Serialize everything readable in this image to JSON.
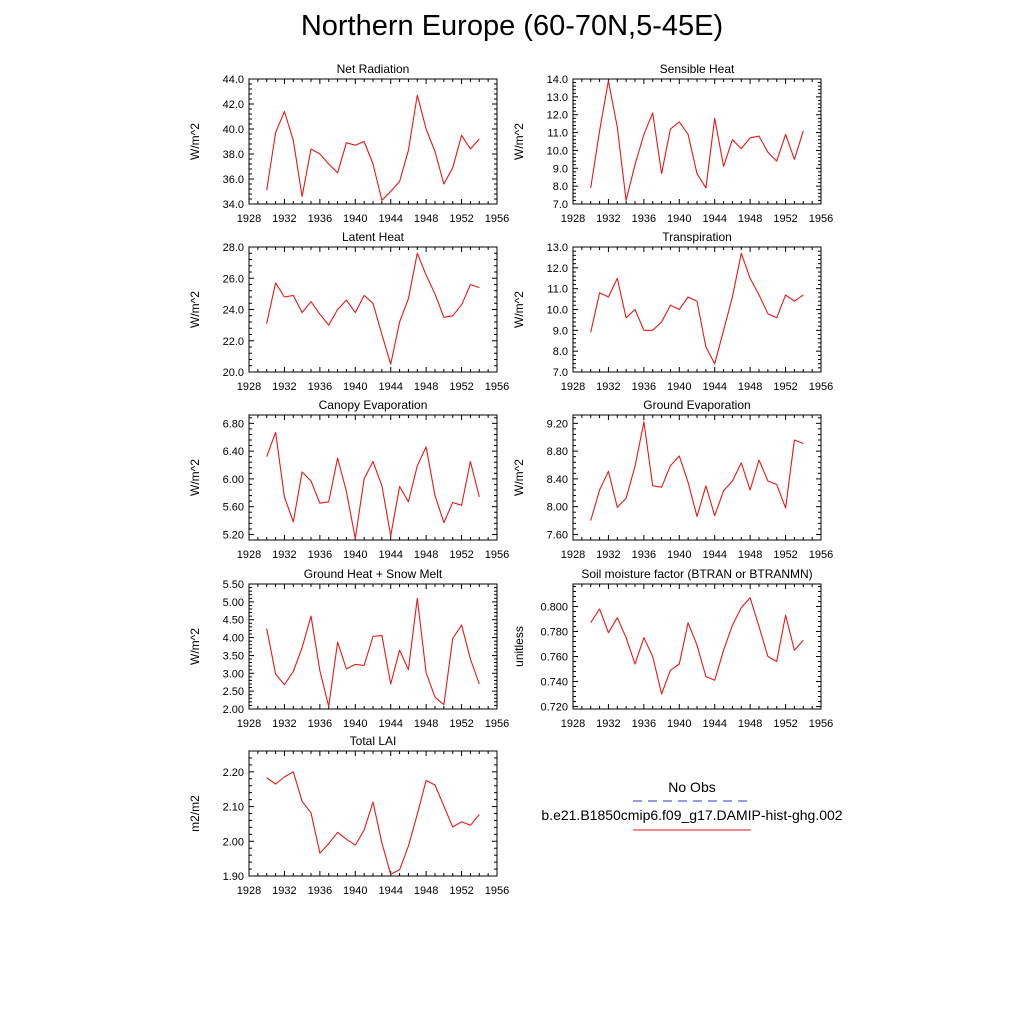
{
  "title": "Northern Europe (60-70N,5-45E)",
  "legend": {
    "obs_label": "No Obs",
    "model_label": "b.e21.B1850cmip6.f09_g17.DAMIP-hist-ghg.002",
    "obs_color": "#3333cc",
    "model_color": "#e61919"
  },
  "chart_data": [
    {
      "type": "line",
      "title": "Net Radiation",
      "ylabel": "W/m^2",
      "xlim": [
        1928,
        1956
      ],
      "ylim": [
        34.0,
        44.0
      ],
      "xticks": [
        1928,
        1932,
        1936,
        1940,
        1944,
        1948,
        1952,
        1956
      ],
      "yticks": [
        34.0,
        36.0,
        38.0,
        40.0,
        42.0,
        44.0
      ],
      "ytick_decimals": 1,
      "x": [
        1930,
        1931,
        1932,
        1933,
        1934,
        1935,
        1936,
        1937,
        1938,
        1939,
        1940,
        1941,
        1942,
        1943,
        1944,
        1945,
        1946,
        1947,
        1948,
        1949,
        1950,
        1951,
        1952,
        1953,
        1954
      ],
      "series": [
        {
          "values": [
            35.1,
            39.7,
            41.4,
            39.1,
            34.6,
            38.4,
            38.0,
            37.2,
            36.5,
            38.9,
            38.7,
            39.0,
            37.2,
            34.3,
            35.0,
            35.8,
            38.3,
            42.7,
            40.0,
            38.2,
            35.6,
            36.9,
            39.5,
            38.4,
            39.2
          ],
          "color": "#e61919"
        }
      ]
    },
    {
      "type": "line",
      "title": "Sensible Heat",
      "ylabel": "W/m^2",
      "xlim": [
        1928,
        1956
      ],
      "ylim": [
        7.0,
        14.0
      ],
      "xticks": [
        1928,
        1932,
        1936,
        1940,
        1944,
        1948,
        1952,
        1956
      ],
      "yticks": [
        7.0,
        8.0,
        9.0,
        10.0,
        11.0,
        12.0,
        13.0,
        14.0
      ],
      "ytick_decimals": 1,
      "x": [
        1930,
        1931,
        1932,
        1933,
        1934,
        1935,
        1936,
        1937,
        1938,
        1939,
        1940,
        1941,
        1942,
        1943,
        1944,
        1945,
        1946,
        1947,
        1948,
        1949,
        1950,
        1951,
        1952,
        1953,
        1954
      ],
      "series": [
        {
          "values": [
            7.9,
            11.1,
            13.9,
            11.3,
            7.2,
            9.2,
            10.9,
            12.1,
            8.7,
            11.2,
            11.6,
            10.9,
            8.7,
            7.9,
            11.8,
            9.1,
            10.6,
            10.1,
            10.7,
            10.8,
            9.9,
            9.4,
            10.9,
            9.5,
            11.1
          ],
          "color": "#e61919"
        }
      ]
    },
    {
      "type": "line",
      "title": "Latent Heat",
      "ylabel": "W/m^2",
      "xlim": [
        1928,
        1956
      ],
      "ylim": [
        20.0,
        28.0
      ],
      "xticks": [
        1928,
        1932,
        1936,
        1940,
        1944,
        1948,
        1952,
        1956
      ],
      "yticks": [
        20.0,
        22.0,
        24.0,
        26.0,
        28.0
      ],
      "ytick_decimals": 1,
      "x": [
        1930,
        1931,
        1932,
        1933,
        1934,
        1935,
        1936,
        1937,
        1938,
        1939,
        1940,
        1941,
        1942,
        1943,
        1944,
        1945,
        1946,
        1947,
        1948,
        1949,
        1950,
        1951,
        1952,
        1953,
        1954
      ],
      "series": [
        {
          "values": [
            23.1,
            25.7,
            24.8,
            24.9,
            23.8,
            24.5,
            23.7,
            23.0,
            24.0,
            24.6,
            23.8,
            24.9,
            24.4,
            22.4,
            20.5,
            23.2,
            24.7,
            27.6,
            26.2,
            25.0,
            23.5,
            23.6,
            24.3,
            25.6,
            25.4
          ],
          "color": "#e61919"
        }
      ]
    },
    {
      "type": "line",
      "title": "Transpiration",
      "ylabel": "W/m^2",
      "xlim": [
        1928,
        1956
      ],
      "ylim": [
        7.0,
        13.0
      ],
      "xticks": [
        1928,
        1932,
        1936,
        1940,
        1944,
        1948,
        1952,
        1956
      ],
      "yticks": [
        7.0,
        8.0,
        9.0,
        10.0,
        11.0,
        12.0,
        13.0
      ],
      "ytick_decimals": 1,
      "x": [
        1930,
        1931,
        1932,
        1933,
        1934,
        1935,
        1936,
        1937,
        1938,
        1939,
        1940,
        1941,
        1942,
        1943,
        1944,
        1945,
        1946,
        1947,
        1948,
        1949,
        1950,
        1951,
        1952,
        1953,
        1954
      ],
      "series": [
        {
          "values": [
            8.9,
            10.8,
            10.6,
            11.5,
            9.6,
            10.0,
            9.0,
            9.0,
            9.4,
            10.2,
            10.0,
            10.6,
            10.4,
            8.2,
            7.4,
            9.0,
            10.6,
            12.7,
            11.5,
            10.7,
            9.8,
            9.6,
            10.7,
            10.4,
            10.7
          ],
          "color": "#e61919"
        }
      ]
    },
    {
      "type": "line",
      "title": "Canopy Evaporation",
      "ylabel": "W/m^2",
      "xlim": [
        1928,
        1956
      ],
      "ylim": [
        5.12,
        6.92
      ],
      "xticks": [
        1928,
        1932,
        1936,
        1940,
        1944,
        1948,
        1952,
        1956
      ],
      "yticks": [
        5.2,
        5.6,
        6.0,
        6.4,
        6.8
      ],
      "ytick_decimals": 2,
      "x": [
        1930,
        1931,
        1932,
        1933,
        1934,
        1935,
        1936,
        1937,
        1938,
        1939,
        1940,
        1941,
        1942,
        1943,
        1944,
        1945,
        1946,
        1947,
        1948,
        1949,
        1950,
        1951,
        1952,
        1953,
        1954
      ],
      "series": [
        {
          "values": [
            6.32,
            6.67,
            5.74,
            5.38,
            6.1,
            5.97,
            5.65,
            5.67,
            6.3,
            5.82,
            5.14,
            6.0,
            6.25,
            5.9,
            5.18,
            5.89,
            5.67,
            6.19,
            6.46,
            5.76,
            5.37,
            5.66,
            5.62,
            6.25,
            5.74
          ],
          "color": "#e61919"
        }
      ]
    },
    {
      "type": "line",
      "title": "Ground Evaporation",
      "ylabel": "W/m^2",
      "xlim": [
        1928,
        1956
      ],
      "ylim": [
        7.52,
        9.32
      ],
      "xticks": [
        1928,
        1932,
        1936,
        1940,
        1944,
        1948,
        1952,
        1956
      ],
      "yticks": [
        7.6,
        8.0,
        8.4,
        8.8,
        9.2
      ],
      "ytick_decimals": 2,
      "x": [
        1930,
        1931,
        1932,
        1933,
        1934,
        1935,
        1936,
        1937,
        1938,
        1939,
        1940,
        1941,
        1942,
        1943,
        1944,
        1945,
        1946,
        1947,
        1948,
        1949,
        1950,
        1951,
        1952,
        1953,
        1954
      ],
      "series": [
        {
          "values": [
            7.8,
            8.24,
            8.51,
            7.99,
            8.12,
            8.58,
            9.22,
            8.3,
            8.28,
            8.59,
            8.73,
            8.35,
            7.86,
            8.3,
            7.87,
            8.23,
            8.37,
            8.63,
            8.24,
            8.67,
            8.37,
            8.32,
            7.98,
            8.96,
            8.91
          ],
          "color": "#e61919"
        }
      ]
    },
    {
      "type": "line",
      "title": "Ground Heat + Snow Melt",
      "ylabel": "W/m^2",
      "xlim": [
        1928,
        1956
      ],
      "ylim": [
        2.0,
        5.5
      ],
      "xticks": [
        1928,
        1932,
        1936,
        1940,
        1944,
        1948,
        1952,
        1956
      ],
      "yticks": [
        2.0,
        2.5,
        3.0,
        3.5,
        4.0,
        4.5,
        5.0,
        5.5
      ],
      "ytick_decimals": 2,
      "x": [
        1930,
        1931,
        1932,
        1933,
        1934,
        1935,
        1936,
        1937,
        1938,
        1939,
        1940,
        1941,
        1942,
        1943,
        1944,
        1945,
        1946,
        1947,
        1948,
        1949,
        1950,
        1951,
        1952,
        1953,
        1954
      ],
      "series": [
        {
          "values": [
            4.25,
            2.98,
            2.68,
            3.05,
            3.72,
            4.6,
            3.07,
            2.07,
            3.87,
            3.12,
            3.25,
            3.22,
            4.03,
            4.06,
            2.7,
            3.65,
            3.1,
            5.1,
            3.02,
            2.33,
            2.12,
            3.97,
            4.35,
            3.4,
            2.7
          ],
          "color": "#e61919"
        }
      ]
    },
    {
      "type": "line",
      "title": "Soil moisture factor (BTRAN or BTRANMN)",
      "ylabel": "unitless",
      "xlim": [
        1928,
        1956
      ],
      "ylim": [
        0.718,
        0.818
      ],
      "xticks": [
        1928,
        1932,
        1936,
        1940,
        1944,
        1948,
        1952,
        1956
      ],
      "yticks": [
        0.72,
        0.74,
        0.76,
        0.78,
        0.8
      ],
      "ytick_decimals": 3,
      "x": [
        1930,
        1931,
        1932,
        1933,
        1934,
        1935,
        1936,
        1937,
        1938,
        1939,
        1940,
        1941,
        1942,
        1943,
        1944,
        1945,
        1946,
        1947,
        1948,
        1949,
        1950,
        1951,
        1952,
        1953,
        1954
      ],
      "series": [
        {
          "values": [
            0.787,
            0.798,
            0.779,
            0.791,
            0.775,
            0.754,
            0.775,
            0.76,
            0.73,
            0.749,
            0.754,
            0.787,
            0.769,
            0.744,
            0.741,
            0.765,
            0.785,
            0.799,
            0.807,
            0.784,
            0.76,
            0.756,
            0.793,
            0.765,
            0.773
          ],
          "color": "#e61919"
        }
      ]
    },
    {
      "type": "line",
      "title": "Total LAI",
      "ylabel": "m2/m2",
      "xlim": [
        1928,
        1956
      ],
      "ylim": [
        1.9,
        2.26
      ],
      "xticks": [
        1928,
        1932,
        1936,
        1940,
        1944,
        1948,
        1952,
        1956
      ],
      "yticks": [
        1.9,
        2.0,
        2.1,
        2.2
      ],
      "ytick_decimals": 2,
      "x": [
        1930,
        1931,
        1932,
        1933,
        1934,
        1935,
        1936,
        1937,
        1938,
        1939,
        1940,
        1941,
        1942,
        1943,
        1944,
        1945,
        1946,
        1947,
        1948,
        1949,
        1950,
        1951,
        1952,
        1953,
        1954
      ],
      "series": [
        {
          "values": [
            2.183,
            2.165,
            2.185,
            2.2,
            2.115,
            2.082,
            1.966,
            1.993,
            2.026,
            2.006,
            1.989,
            2.032,
            2.113,
            1.995,
            1.905,
            1.918,
            1.986,
            2.078,
            2.175,
            2.162,
            2.101,
            2.041,
            2.056,
            2.046,
            2.077
          ],
          "color": "#e61919"
        }
      ]
    }
  ]
}
